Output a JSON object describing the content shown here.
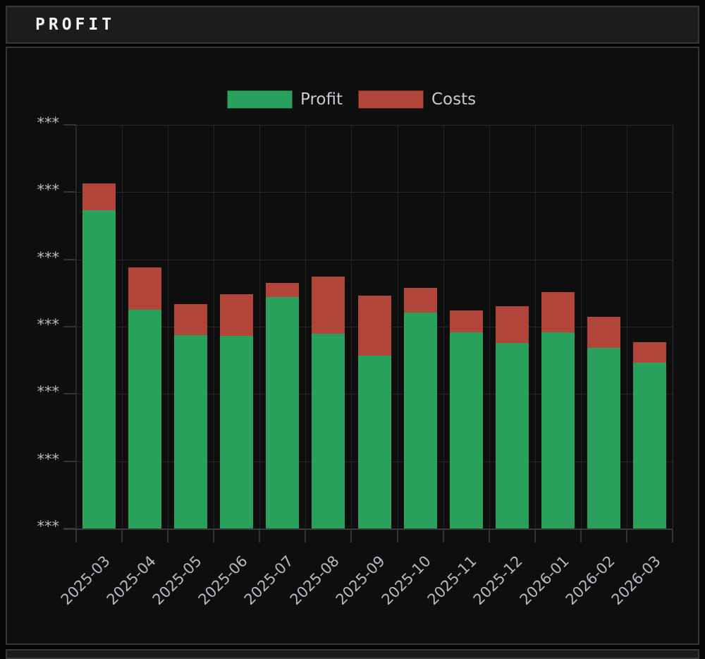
{
  "panel": {
    "title": "PROFIT"
  },
  "colors": {
    "profit": "#2aa05d",
    "costs": "#b2453a",
    "background": "#0e0e0e",
    "panel_header": "#1c1c1c",
    "tick_text": "#b9b9c3",
    "legend_text": "#c9c9d3",
    "title_text": "#f5f5f5"
  },
  "legend": {
    "items": [
      "Profit",
      "Costs"
    ],
    "position": "top-center"
  },
  "chart_data": {
    "type": "bar",
    "stacked": true,
    "title": "PROFIT",
    "xlabel": "",
    "ylabel": "",
    "categories": [
      "2025-03",
      "2025-04",
      "2025-05",
      "2025-06",
      "2025-07",
      "2025-08",
      "2025-09",
      "2025-10",
      "2025-11",
      "2025-12",
      "2026-01",
      "2026-02",
      "2026-03"
    ],
    "series": [
      {
        "name": "Profit",
        "color": "#2aa05d",
        "values": [
          4.73,
          3.25,
          2.87,
          2.86,
          3.44,
          2.9,
          2.57,
          3.21,
          2.92,
          2.76,
          2.92,
          2.69,
          2.46
        ]
      },
      {
        "name": "Costs",
        "color": "#b2453a",
        "values": [
          0.4,
          0.63,
          0.47,
          0.62,
          0.21,
          0.84,
          0.89,
          0.37,
          0.32,
          0.54,
          0.59,
          0.46,
          0.31
        ]
      }
    ],
    "y_axis_masked": true,
    "y_tick_labels": [
      "***",
      "***",
      "***",
      "***",
      "***",
      "***",
      "***"
    ],
    "ylim": [
      0,
      6
    ],
    "units_note": "y values expressed in gridline intervals; actual amounts masked as ***",
    "grid": true,
    "legend_position": "top-center",
    "x_tick_rotation_deg": 45
  }
}
